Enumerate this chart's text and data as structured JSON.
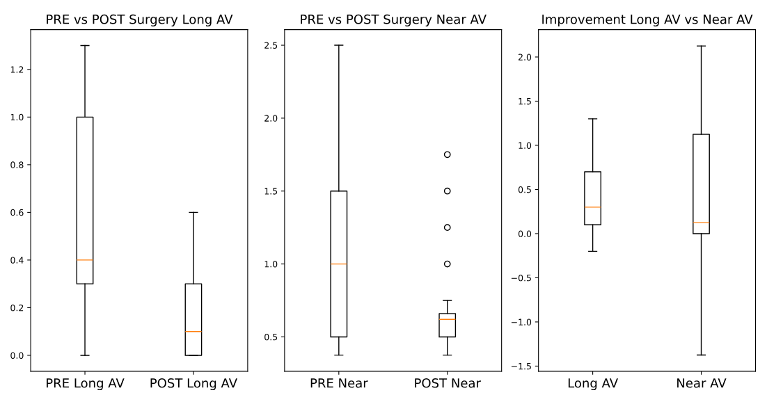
{
  "chart_data": [
    {
      "type": "box",
      "title": "PRE vs POST Surgery Long AV",
      "categories": [
        "PRE Long AV",
        "POST Long AV"
      ],
      "ylim": [
        -0.067,
        1.367
      ],
      "yticks": [
        {
          "value": 0.0,
          "label": "0.0"
        },
        {
          "value": 0.2,
          "label": "0.2"
        },
        {
          "value": 0.4,
          "label": "0.4"
        },
        {
          "value": 0.6,
          "label": "0.6"
        },
        {
          "value": 0.8,
          "label": "0.8"
        },
        {
          "value": 1.0,
          "label": "1.0"
        },
        {
          "value": 1.2,
          "label": "1.2"
        }
      ],
      "color": "#000000",
      "boxes": [
        {
          "low": 0,
          "q1": 0.3,
          "median": 0.4,
          "q3": 1.0,
          "high": 1.3
        },
        {
          "low": 0,
          "q1": 0,
          "median": 0.1,
          "q3": 0.3,
          "high": 0.6
        }
      ]
    },
    {
      "type": "box",
      "title": "PRE vs POST Surgery Near AV",
      "categories": [
        "PRE Near",
        "POST Near"
      ],
      "ylim": [
        0.264,
        2.607
      ],
      "yticks": [
        {
          "value": 0.5,
          "label": "0.5"
        },
        {
          "value": 1.0,
          "label": "1.0"
        },
        {
          "value": 1.5,
          "label": "1.5"
        },
        {
          "value": 2.0,
          "label": "2.0"
        },
        {
          "value": 2.5,
          "label": "2.5"
        }
      ],
      "color": "#000000",
      "boxes": [
        {
          "low": 0.375,
          "q1": 0.5,
          "median": 1.0,
          "q3": 1.5,
          "high": 2.5
        },
        {
          "low": 0.375,
          "q1": 0.5,
          "median": 0.62,
          "q3": 0.66,
          "high": 0.75,
          "outliers": [
            1.0,
            1.25,
            1.5,
            1.75
          ]
        }
      ]
    },
    {
      "type": "box",
      "title": "Improvement Long AV vs Near AV",
      "categories": [
        "Long AV",
        "Near AV"
      ],
      "ylim": [
        -1.559,
        2.31
      ],
      "yticks": [
        {
          "value": -1.5,
          "label": "−1.5"
        },
        {
          "value": -1.0,
          "label": "−1.0"
        },
        {
          "value": -0.5,
          "label": "−0.5"
        },
        {
          "value": 0.0,
          "label": "0.0"
        },
        {
          "value": 0.5,
          "label": "0.5"
        },
        {
          "value": 1.0,
          "label": "1.0"
        },
        {
          "value": 1.5,
          "label": "1.5"
        },
        {
          "value": 2.0,
          "label": "2.0"
        }
      ],
      "color": "#000000",
      "boxes": [
        {
          "low": -0.2,
          "q1": 0.1,
          "median": 0.3,
          "q3": 0.7,
          "high": 1.3
        },
        {
          "low": -1.375,
          "q1": 0,
          "median": 0.125,
          "q3": 1.125,
          "high": 2.125
        }
      ]
    }
  ]
}
